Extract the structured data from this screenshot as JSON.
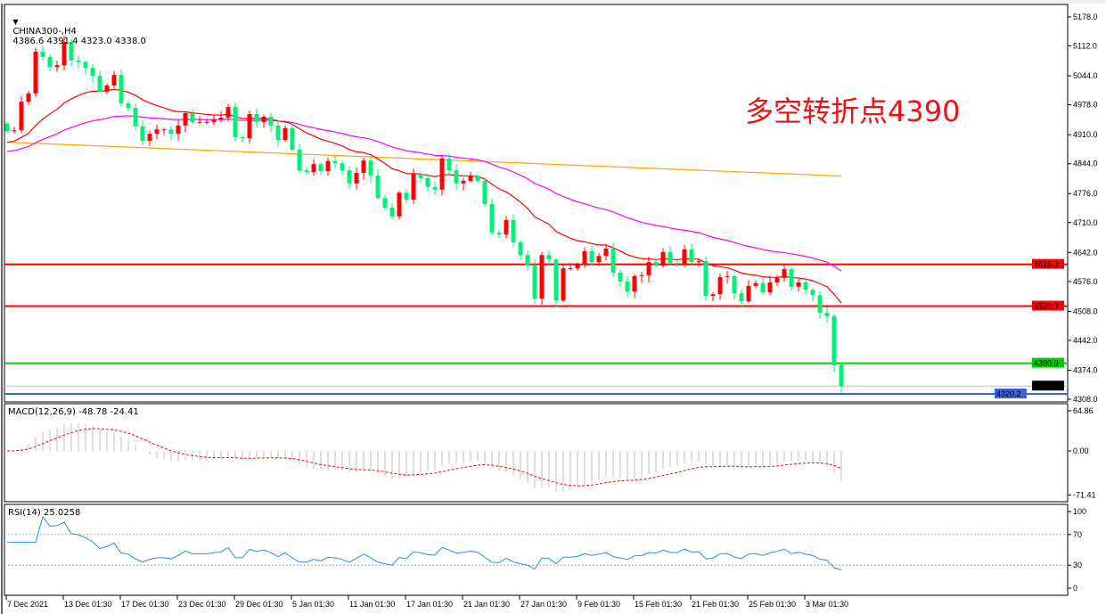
{
  "header": {
    "symbol_timeframe": "CHINA300-,H4",
    "ohlc": "4386.6 4391.4 4323.0 4338.0",
    "dropdown_icon": "triangle-down-icon"
  },
  "annotation": {
    "text": "多空转折点4390",
    "color": "#ee1111"
  },
  "colors": {
    "bull": "#ff0000",
    "bear": "#00f07a",
    "ma_fast": "#ff0000",
    "ma_mid": "#ff00ff",
    "ma_slow": "#ffa500"
  },
  "chart_data": [
    {
      "type": "candlestick",
      "title": "CHINA300-,H4",
      "ylim": [
        4308.0,
        5178.0
      ],
      "y_ticks": [
        "5178.0",
        "5112.0",
        "5044.0",
        "4978.0",
        "4910.0",
        "4844.0",
        "4776.0",
        "4710.0",
        "4642.0",
        "4576.0",
        "4508.0",
        "4442.0",
        "4374.0",
        "4308.0"
      ],
      "x_ticks": [
        "7 Dec 2021",
        "13 Dec 01:30",
        "17 Dec 01:30",
        "23 Dec 01:30",
        "29 Dec 01:30",
        "5 Jan 01:30",
        "11 Jan 01:30",
        "17 Jan 01:30",
        "21 Jan 01:30",
        "27 Jan 01:30",
        "9 Feb 01:30",
        "15 Feb 01:30",
        "21 Feb 01:30",
        "25 Feb 01:30",
        "3 Mar 01:30"
      ],
      "last_candle": {
        "open": 4386.6,
        "high": 4391.4,
        "low": 4323.0,
        "close": 4338.0
      },
      "first_open": 4935,
      "closes": [
        4918,
        4920,
        4985,
        5004,
        5099,
        5087,
        5064,
        5068,
        5121,
        5079,
        5075,
        5062,
        5044,
        5008,
        5022,
        5046,
        4981,
        4971,
        4929,
        4896,
        4912,
        4922,
        4922,
        4912,
        4931,
        4959,
        4939,
        4939,
        4939,
        4945,
        4949,
        4973,
        4904,
        4902,
        4957,
        4939,
        4951,
        4931,
        4898,
        4925,
        4876,
        4829,
        4825,
        4843,
        4827,
        4850,
        4845,
        4829,
        4799,
        4823,
        4851,
        4817,
        4766,
        4744,
        4724,
        4778,
        4762,
        4821,
        4811,
        4791,
        4785,
        4856,
        4829,
        4799,
        4805,
        4815,
        4805,
        4752,
        4687,
        4683,
        4716,
        4665,
        4636,
        4612,
        4537,
        4636,
        4626,
        4533,
        4606,
        4606,
        4614,
        4645,
        4620,
        4634,
        4651,
        4596,
        4576,
        4553,
        4588,
        4590,
        4620,
        4612,
        4643,
        4618,
        4616,
        4649,
        4620,
        4622,
        4543,
        4547,
        4586,
        4588,
        4549,
        4531,
        4566,
        4572,
        4551,
        4574,
        4584,
        4604,
        4564,
        4574,
        4557,
        4545,
        4505,
        4497,
        4385,
        4338
      ],
      "moving_averages": [
        {
          "color": "#ff0000",
          "period": 20,
          "start": 4890
        },
        {
          "color": "#ff00ff",
          "period": 50,
          "start": 4870
        },
        {
          "color": "#ffa500",
          "start": 4893,
          "end": 4816
        }
      ],
      "horizontal_levels": [
        {
          "value": 4615.0,
          "label": "4615.0",
          "color": "#ff0000"
        },
        {
          "value": 4520.0,
          "label": "4520.0",
          "color": "#ff0000"
        },
        {
          "value": 4390.0,
          "label": "4390.0",
          "color": "#00cc00"
        },
        {
          "value": 4338.0,
          "label": "4338.0",
          "color": "#c0c0c0",
          "label_bg": "#000000"
        },
        {
          "value": 4320.2,
          "label": "4320.2",
          "color": "#4060e0"
        }
      ]
    },
    {
      "type": "bar",
      "title": "MACD(12,26,9) -48.78 -24.41",
      "ylim": [
        -71.41,
        64.86
      ],
      "y_ticks": [
        "64.86",
        "0.00",
        "-71.41"
      ],
      "main_color": "#c0c0c0",
      "signal_color": "#ff0000"
    },
    {
      "type": "line",
      "title": "RSI(14) 25.0258",
      "ylim": [
        0,
        100
      ],
      "y_ticks": [
        "100",
        "70",
        "30",
        "0"
      ],
      "levels": [
        70,
        30
      ],
      "color": "#1e90ff"
    }
  ]
}
